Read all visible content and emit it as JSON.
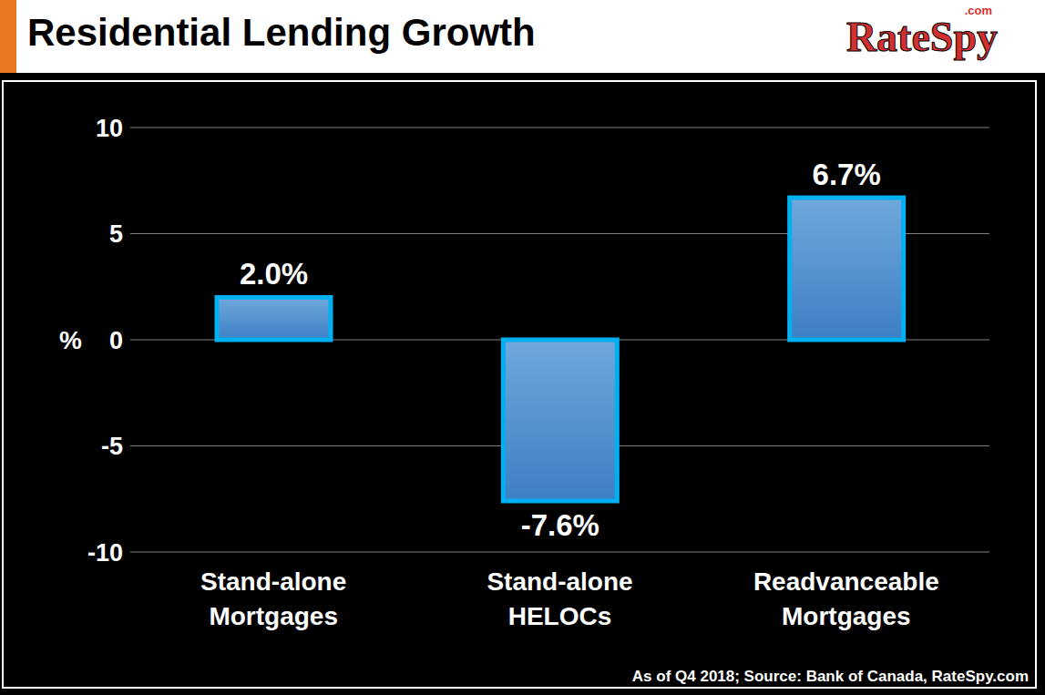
{
  "chart_data": {
    "type": "bar",
    "title": "Residential Lending Growth",
    "logo": "RateSpy",
    "logo_suffix": ".com",
    "note": "As of Q4 2018; Source: Bank of Canada, RateSpy.com",
    "y_label": "%",
    "categories": [
      "Stand-alone Mortgages",
      "Stand-alone HELOCs",
      "Readvanceable Mortgages"
    ],
    "values": [
      2.0,
      -7.6,
      6.7
    ],
    "value_labels": [
      "2.0%",
      "-7.6%",
      "6.7%"
    ],
    "data_labels": true,
    "color": "#00b0f0",
    "ylim": [
      -10,
      10
    ],
    "yticks": [
      -10,
      -5,
      0,
      5,
      10
    ],
    "grid": true
  }
}
